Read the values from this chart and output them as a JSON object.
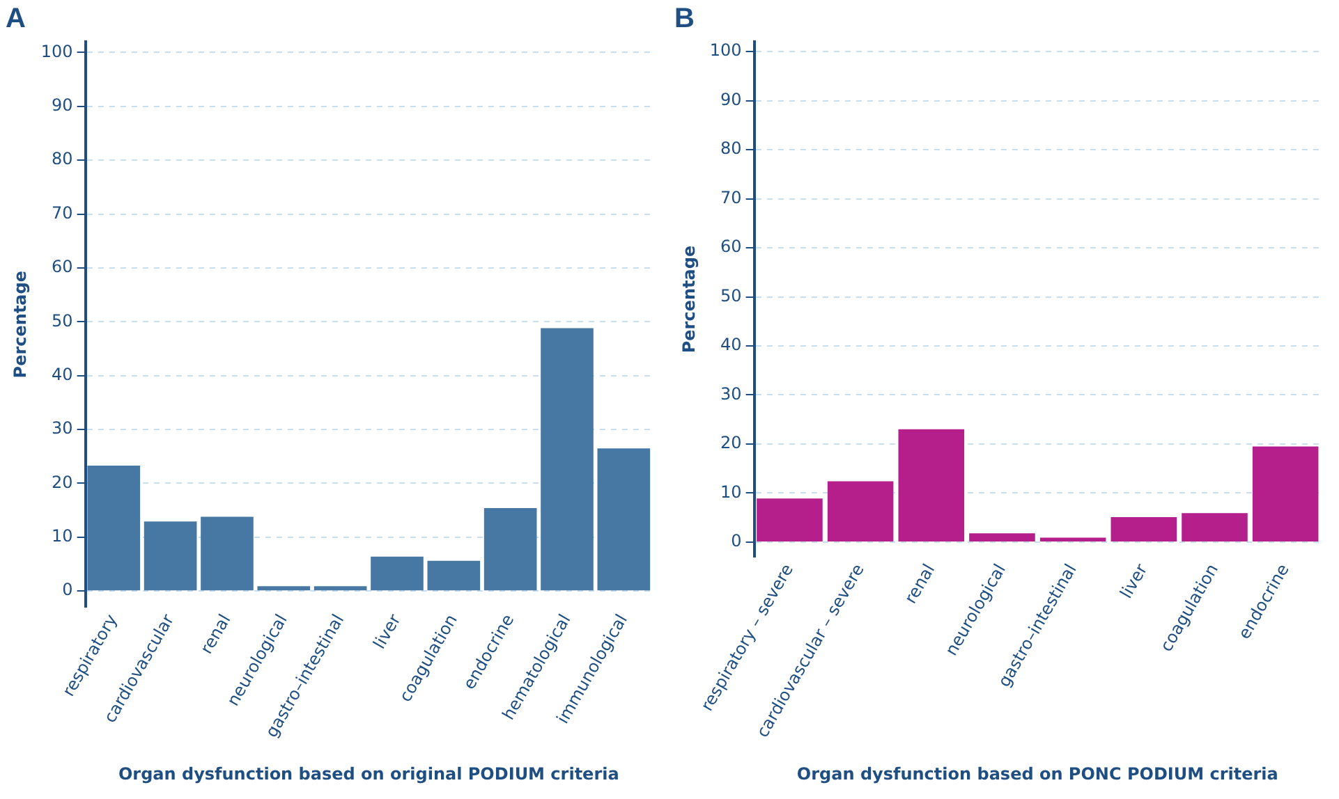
{
  "chart_data": [
    {
      "type": "bar",
      "title": "A",
      "xlabel": "Organ dysfunction based on original PODIUM criteria",
      "ylabel": "Percentage",
      "categories": [
        "respiratory",
        "cardiovascular",
        "renal",
        "neurological",
        "gastro–intestinal",
        "liver",
        "coagulation",
        "endocrine",
        "hematological",
        "immunological"
      ],
      "series": [
        {
          "color": "#4778a3",
          "values": [
            23.3,
            12.9,
            13.8,
            0.9,
            0.9,
            6.4,
            5.6,
            15.4,
            48.8,
            26.5
          ]
        }
      ],
      "ylim": [
        -3,
        102
      ],
      "yticks": [
        0,
        10,
        20,
        30,
        40,
        50,
        60,
        70,
        80,
        90,
        100
      ],
      "grid": "y",
      "legend": false
    },
    {
      "type": "bar",
      "title": "B",
      "xlabel": "Organ dysfunction based on PONC PODIUM criteria",
      "ylabel": "Percentage",
      "categories": [
        "respiratory – severe",
        "cardiovascular – severe",
        "renal",
        "neurological",
        "gastro–intestinal",
        "liver",
        "coagulation",
        "endocrine"
      ],
      "series": [
        {
          "color": "#b41f8b",
          "values": [
            8.9,
            12.4,
            23.0,
            1.8,
            0.9,
            5.1,
            5.9,
            19.5
          ]
        }
      ],
      "ylim": [
        -3,
        102
      ],
      "yticks": [
        0,
        10,
        20,
        30,
        40,
        50,
        60,
        70,
        80,
        90,
        100
      ],
      "grid": "y",
      "legend": false
    }
  ]
}
